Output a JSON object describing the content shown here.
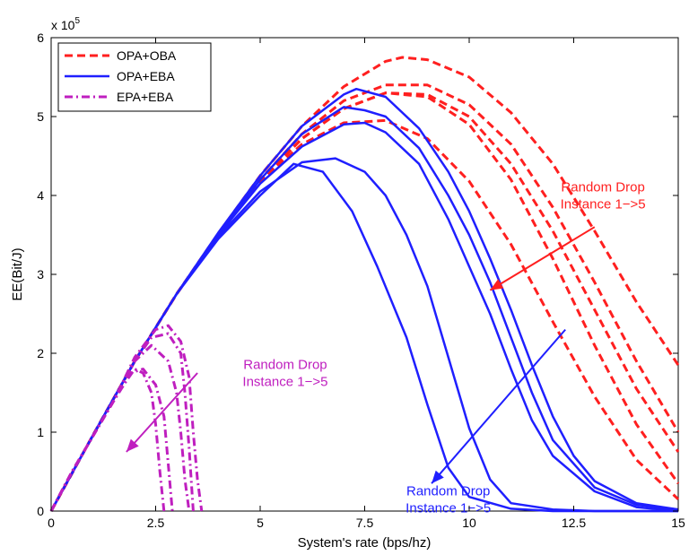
{
  "chart_data": {
    "type": "line",
    "title": "",
    "xlabel": "System's rate (bps/hz)",
    "ylabel": "EE(Bit/J)",
    "y_multiplier_label": "x 10",
    "y_multiplier_exponent": "5",
    "xlim": [
      0,
      15
    ],
    "ylim": [
      0,
      6
    ],
    "x_ticks": [
      0,
      2.5,
      5,
      7.5,
      10,
      12.5,
      15
    ],
    "x_tick_labels": [
      "0",
      "2.5",
      "5",
      "7.5",
      "10",
      "12.5",
      "15"
    ],
    "y_ticks": [
      0,
      1,
      2,
      3,
      4,
      5,
      6
    ],
    "y_tick_labels": [
      "0",
      "1",
      "2",
      "3",
      "4",
      "5",
      "6"
    ],
    "grid": false,
    "legend_position": "top-left",
    "colors": {
      "OPA+OBA": "#ff1f1f",
      "OPA+EBA": "#1f1fff",
      "EPA+EBA": "#bf1fbf"
    },
    "legend": [
      "OPA+OBA",
      "OPA+EBA",
      "EPA+EBA"
    ],
    "series": [
      {
        "group": "OPA+OBA",
        "points": [
          [
            0,
            0
          ],
          [
            1,
            0.96
          ],
          [
            2,
            1.9
          ],
          [
            3,
            2.75
          ],
          [
            4,
            3.5
          ],
          [
            5,
            4.18
          ],
          [
            6,
            4.72
          ],
          [
            7,
            5.1
          ],
          [
            8,
            5.3
          ],
          [
            9,
            5.28
          ],
          [
            10,
            5.0
          ],
          [
            11,
            4.4
          ],
          [
            12,
            3.55
          ],
          [
            13,
            2.55
          ],
          [
            14,
            1.55
          ],
          [
            15,
            0.75
          ]
        ]
      },
      {
        "group": "OPA+OBA",
        "points": [
          [
            0,
            0
          ],
          [
            1,
            0.96
          ],
          [
            2,
            1.9
          ],
          [
            3,
            2.75
          ],
          [
            4,
            3.5
          ],
          [
            5,
            4.18
          ],
          [
            6,
            4.72
          ],
          [
            7,
            5.1
          ],
          [
            8,
            5.3
          ],
          [
            9,
            5.25
          ],
          [
            10,
            4.9
          ],
          [
            11,
            4.2
          ],
          [
            12,
            3.2
          ],
          [
            13,
            2.1
          ],
          [
            14,
            1.1
          ],
          [
            15,
            0.35
          ]
        ]
      },
      {
        "group": "OPA+OBA",
        "points": [
          [
            0,
            0
          ],
          [
            1,
            0.96
          ],
          [
            2,
            1.9
          ],
          [
            3,
            2.75
          ],
          [
            4,
            3.5
          ],
          [
            5,
            4.2
          ],
          [
            6,
            4.78
          ],
          [
            7,
            5.2
          ],
          [
            8,
            5.4
          ],
          [
            9,
            5.4
          ],
          [
            10,
            5.15
          ],
          [
            11,
            4.65
          ],
          [
            12,
            3.85
          ],
          [
            13,
            2.9
          ],
          [
            14,
            1.9
          ],
          [
            15,
            1.0
          ]
        ]
      },
      {
        "group": "OPA+OBA",
        "points": [
          [
            0,
            0
          ],
          [
            1,
            0.96
          ],
          [
            2,
            1.9
          ],
          [
            3,
            2.75
          ],
          [
            4,
            3.5
          ],
          [
            5,
            4.18
          ],
          [
            6,
            4.65
          ],
          [
            7,
            4.92
          ],
          [
            8,
            4.95
          ],
          [
            9,
            4.72
          ],
          [
            10,
            4.18
          ],
          [
            11,
            3.38
          ],
          [
            12,
            2.4
          ],
          [
            13,
            1.45
          ],
          [
            14,
            0.65
          ],
          [
            15,
            0.15
          ]
        ]
      },
      {
        "group": "OPA+OBA",
        "points": [
          [
            0,
            0
          ],
          [
            1,
            0.96
          ],
          [
            2,
            1.9
          ],
          [
            3,
            2.75
          ],
          [
            4,
            3.52
          ],
          [
            5,
            4.25
          ],
          [
            6,
            4.88
          ],
          [
            7,
            5.38
          ],
          [
            8,
            5.7
          ],
          [
            8.4,
            5.75
          ],
          [
            9,
            5.72
          ],
          [
            10,
            5.5
          ],
          [
            11,
            5.05
          ],
          [
            12,
            4.4
          ],
          [
            13,
            3.55
          ],
          [
            14,
            2.65
          ],
          [
            15,
            1.85
          ]
        ]
      },
      {
        "group": "OPA+EBA",
        "points": [
          [
            0,
            0
          ],
          [
            1,
            0.96
          ],
          [
            2,
            1.9
          ],
          [
            3,
            2.75
          ],
          [
            4,
            3.48
          ],
          [
            5,
            4.05
          ],
          [
            6,
            4.42
          ],
          [
            6.8,
            4.47
          ],
          [
            7.5,
            4.3
          ],
          [
            8,
            4.0
          ],
          [
            8.5,
            3.5
          ],
          [
            9,
            2.85
          ],
          [
            9.5,
            1.95
          ],
          [
            10,
            1.05
          ],
          [
            10.5,
            0.4
          ],
          [
            11,
            0.1
          ],
          [
            12,
            0.02
          ],
          [
            13,
            0.0
          ],
          [
            15,
            0.0
          ]
        ]
      },
      {
        "group": "OPA+EBA",
        "points": [
          [
            0,
            0
          ],
          [
            1,
            0.96
          ],
          [
            2,
            1.9
          ],
          [
            3,
            2.75
          ],
          [
            4,
            3.45
          ],
          [
            5,
            4.0
          ],
          [
            5.8,
            4.4
          ],
          [
            6.5,
            4.3
          ],
          [
            7.2,
            3.8
          ],
          [
            7.8,
            3.1
          ],
          [
            8.5,
            2.2
          ],
          [
            9,
            1.35
          ],
          [
            9.5,
            0.55
          ],
          [
            10,
            0.18
          ],
          [
            11,
            0.03
          ],
          [
            12,
            0.0
          ],
          [
            15,
            0.0
          ]
        ]
      },
      {
        "group": "OPA+EBA",
        "points": [
          [
            0,
            0
          ],
          [
            1,
            0.96
          ],
          [
            2,
            1.9
          ],
          [
            3,
            2.75
          ],
          [
            4,
            3.5
          ],
          [
            5,
            4.15
          ],
          [
            6,
            4.62
          ],
          [
            7,
            4.9
          ],
          [
            7.5,
            4.92
          ],
          [
            8,
            4.8
          ],
          [
            8.8,
            4.4
          ],
          [
            9.5,
            3.7
          ],
          [
            10,
            3.1
          ],
          [
            10.5,
            2.5
          ],
          [
            11,
            1.8
          ],
          [
            11.5,
            1.15
          ],
          [
            12,
            0.7
          ],
          [
            13,
            0.25
          ],
          [
            14,
            0.05
          ],
          [
            15,
            0.0
          ]
        ]
      },
      {
        "group": "OPA+EBA",
        "points": [
          [
            0,
            0
          ],
          [
            1,
            0.96
          ],
          [
            2,
            1.9
          ],
          [
            3,
            2.75
          ],
          [
            4,
            3.52
          ],
          [
            5,
            4.2
          ],
          [
            6,
            4.78
          ],
          [
            7,
            5.12
          ],
          [
            7.5,
            5.08
          ],
          [
            8,
            5.0
          ],
          [
            8.8,
            4.6
          ],
          [
            9.5,
            4.0
          ],
          [
            10,
            3.5
          ],
          [
            10.5,
            2.9
          ],
          [
            11,
            2.2
          ],
          [
            11.5,
            1.5
          ],
          [
            12,
            0.9
          ],
          [
            13,
            0.3
          ],
          [
            14,
            0.08
          ],
          [
            15,
            0.02
          ]
        ]
      },
      {
        "group": "OPA+EBA",
        "points": [
          [
            0,
            0
          ],
          [
            1,
            0.96
          ],
          [
            2,
            1.9
          ],
          [
            3,
            2.75
          ],
          [
            4,
            3.53
          ],
          [
            5,
            4.25
          ],
          [
            6,
            4.88
          ],
          [
            7,
            5.28
          ],
          [
            7.3,
            5.35
          ],
          [
            8,
            5.25
          ],
          [
            8.8,
            4.85
          ],
          [
            9.5,
            4.3
          ],
          [
            10,
            3.8
          ],
          [
            10.5,
            3.2
          ],
          [
            11,
            2.55
          ],
          [
            11.5,
            1.85
          ],
          [
            12,
            1.2
          ],
          [
            12.5,
            0.7
          ],
          [
            13,
            0.38
          ],
          [
            14,
            0.1
          ],
          [
            15,
            0.02
          ]
        ]
      },
      {
        "group": "EPA+EBA",
        "points": [
          [
            0,
            0
          ],
          [
            0.5,
            0.5
          ],
          [
            1,
            0.95
          ],
          [
            1.5,
            1.4
          ],
          [
            1.8,
            1.65
          ],
          [
            2.0,
            1.8
          ],
          [
            2.2,
            1.75
          ],
          [
            2.4,
            1.5
          ],
          [
            2.5,
            1.1
          ],
          [
            2.6,
            0.5
          ],
          [
            2.7,
            0.0
          ]
        ]
      },
      {
        "group": "EPA+EBA",
        "points": [
          [
            0,
            0
          ],
          [
            0.5,
            0.5
          ],
          [
            1,
            0.95
          ],
          [
            1.5,
            1.4
          ],
          [
            2.0,
            1.9
          ],
          [
            2.4,
            2.1
          ],
          [
            2.8,
            1.9
          ],
          [
            3.0,
            1.5
          ],
          [
            3.1,
            1.0
          ],
          [
            3.2,
            0.4
          ],
          [
            3.3,
            0.0
          ]
        ]
      },
      {
        "group": "EPA+EBA",
        "points": [
          [
            0,
            0
          ],
          [
            0.5,
            0.5
          ],
          [
            1,
            0.95
          ],
          [
            1.5,
            1.4
          ],
          [
            2.0,
            1.95
          ],
          [
            2.5,
            2.3
          ],
          [
            2.8,
            2.35
          ],
          [
            3.1,
            2.15
          ],
          [
            3.3,
            1.7
          ],
          [
            3.4,
            1.0
          ],
          [
            3.5,
            0.4
          ],
          [
            3.6,
            0.0
          ]
        ]
      },
      {
        "group": "EPA+EBA",
        "points": [
          [
            0,
            0
          ],
          [
            0.5,
            0.5
          ],
          [
            1,
            0.95
          ],
          [
            1.5,
            1.4
          ],
          [
            2.0,
            1.9
          ],
          [
            2.4,
            2.2
          ],
          [
            2.8,
            2.25
          ],
          [
            3.1,
            2.0
          ],
          [
            3.2,
            1.5
          ],
          [
            3.3,
            0.8
          ],
          [
            3.4,
            0.0
          ]
        ]
      },
      {
        "group": "EPA+EBA",
        "points": [
          [
            0,
            0
          ],
          [
            0.5,
            0.5
          ],
          [
            1,
            0.95
          ],
          [
            1.5,
            1.4
          ],
          [
            1.9,
            1.75
          ],
          [
            2.2,
            1.8
          ],
          [
            2.5,
            1.6
          ],
          [
            2.7,
            1.2
          ],
          [
            2.8,
            0.6
          ],
          [
            2.9,
            0.0
          ]
        ]
      }
    ],
    "annotations": [
      {
        "group": "OPA+OBA",
        "lines": [
          "Random Drop",
          "Instance 1−>5"
        ],
        "text_at": [
          13.2,
          4.05
        ],
        "arrow_from": [
          13.0,
          3.6
        ],
        "arrow_to": [
          10.5,
          2.8
        ]
      },
      {
        "group": "OPA+EBA",
        "lines": [
          "Random Drop",
          "Instance 1−>5"
        ],
        "text_at": [
          9.5,
          0.2
        ],
        "arrow_from": [
          12.3,
          2.3
        ],
        "arrow_to": [
          9.1,
          0.35
        ]
      },
      {
        "group": "EPA+EBA",
        "lines": [
          "Random Drop",
          "Instance 1−>5"
        ],
        "text_at": [
          5.6,
          1.8
        ],
        "arrow_from": [
          3.5,
          1.75
        ],
        "arrow_to": [
          1.8,
          0.75
        ]
      }
    ]
  }
}
